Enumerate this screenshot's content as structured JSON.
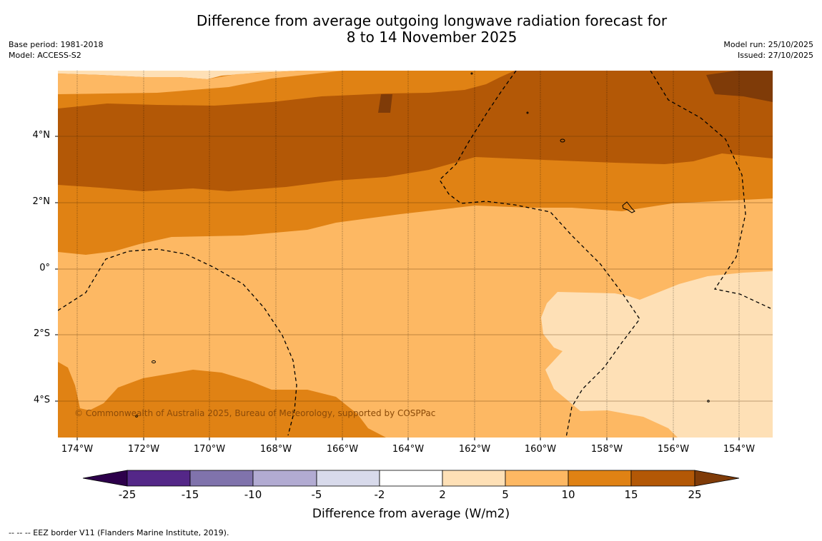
{
  "title_line1": "Difference from average outgoing longwave radiation forecast for",
  "title_line2": "8 to 14 November 2025",
  "base_period": "Base period: 1981-2018",
  "model": "Model: ACCESS-S2",
  "model_run": "Model run: 25/10/2025",
  "issued": "Issued: 27/10/2025",
  "copyright": "© Commonwealth of Australia 2025, Bureau of Meteorology, supported by COSPPac",
  "footnote": "--  --  -- EEZ border V11 (Flanders Marine Institute, 2019).",
  "map": {
    "lat_labels": [
      "4°N",
      "2°N",
      "0°",
      "2°S",
      "4°S"
    ],
    "lon_labels": [
      "174°W",
      "172°W",
      "170°W",
      "168°W",
      "166°W",
      "164°W",
      "162°W",
      "160°W",
      "158°W",
      "156°W",
      "154°W"
    ]
  },
  "colorbar": {
    "label": "Difference from average (W/m2)",
    "ticks": [
      "-25",
      "-15",
      "-10",
      "-5",
      "-2",
      "2",
      "5",
      "10",
      "15",
      "25"
    ],
    "colors": {
      "below": "#2d004b",
      "bins": [
        "#542788",
        "#8073ac",
        "#b2abd2",
        "#d8daeb",
        "#ffffff",
        "#fee0b6",
        "#fdb863",
        "#e08214",
        "#b35806"
      ],
      "above": "#7f3b08"
    }
  }
}
